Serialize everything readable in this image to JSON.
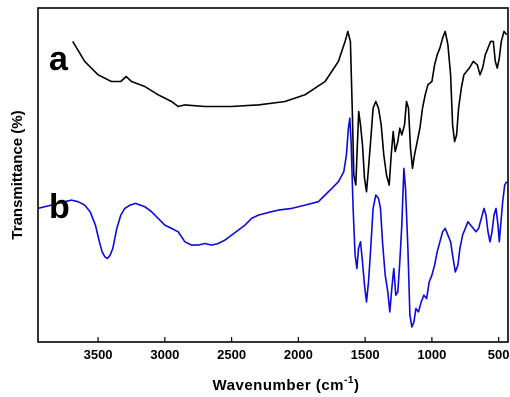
{
  "chart_data": {
    "type": "line",
    "title": "",
    "xlabel_main": "Wavenumber (cm",
    "xlabel_sup": "-1",
    "xlabel_close": ")",
    "ylabel": "Transmittance (%)",
    "x_reversed": true,
    "xlim": [
      3950,
      430
    ],
    "x_ticks": [
      3500,
      3000,
      2500,
      2000,
      1500,
      1000,
      500
    ],
    "x_tick_labels": [
      "3500",
      "3000",
      "2500",
      "2000",
      "1500",
      "1000",
      "500"
    ],
    "y_ticks_shown": false,
    "ylim": [
      0,
      100
    ],
    "grid": false,
    "legend": "none",
    "series": [
      {
        "name": "a",
        "color": "#000000",
        "points": [
          [
            3690,
            90
          ],
          [
            3600,
            84
          ],
          [
            3500,
            80
          ],
          [
            3400,
            78
          ],
          [
            3330,
            78
          ],
          [
            3290,
            79.5
          ],
          [
            3250,
            78
          ],
          [
            3150,
            76.5
          ],
          [
            3050,
            74
          ],
          [
            2950,
            72
          ],
          [
            2900,
            70.5
          ],
          [
            2850,
            71
          ],
          [
            2700,
            70.5
          ],
          [
            2500,
            70.5
          ],
          [
            2300,
            71
          ],
          [
            2100,
            72
          ],
          [
            1950,
            74
          ],
          [
            1800,
            78
          ],
          [
            1700,
            84
          ],
          [
            1650,
            90
          ],
          [
            1630,
            93
          ],
          [
            1610,
            90
          ],
          [
            1595,
            68
          ],
          [
            1585,
            50
          ],
          [
            1570,
            47
          ],
          [
            1560,
            57
          ],
          [
            1548,
            69
          ],
          [
            1535,
            65
          ],
          [
            1520,
            59
          ],
          [
            1505,
            49
          ],
          [
            1490,
            45
          ],
          [
            1475,
            52
          ],
          [
            1455,
            62
          ],
          [
            1440,
            70
          ],
          [
            1420,
            72
          ],
          [
            1400,
            70
          ],
          [
            1380,
            65
          ],
          [
            1360,
            56
          ],
          [
            1340,
            50
          ],
          [
            1320,
            47
          ],
          [
            1305,
            56
          ],
          [
            1290,
            63
          ],
          [
            1275,
            57
          ],
          [
            1255,
            60
          ],
          [
            1240,
            64
          ],
          [
            1225,
            62
          ],
          [
            1205,
            65
          ],
          [
            1190,
            72
          ],
          [
            1175,
            70
          ],
          [
            1160,
            58
          ],
          [
            1145,
            52
          ],
          [
            1130,
            56
          ],
          [
            1110,
            60
          ],
          [
            1090,
            64
          ],
          [
            1070,
            70
          ],
          [
            1050,
            74
          ],
          [
            1030,
            77
          ],
          [
            1000,
            78
          ],
          [
            980,
            83
          ],
          [
            960,
            86
          ],
          [
            940,
            88
          ],
          [
            920,
            91
          ],
          [
            900,
            93
          ],
          [
            880,
            89
          ],
          [
            860,
            80
          ],
          [
            845,
            65
          ],
          [
            830,
            60
          ],
          [
            815,
            62
          ],
          [
            800,
            70
          ],
          [
            780,
            76
          ],
          [
            760,
            80
          ],
          [
            720,
            82
          ],
          [
            690,
            84
          ],
          [
            660,
            83
          ],
          [
            640,
            80
          ],
          [
            620,
            82
          ],
          [
            600,
            86
          ],
          [
            580,
            88
          ],
          [
            560,
            90
          ],
          [
            540,
            90
          ],
          [
            525,
            84
          ],
          [
            510,
            82
          ],
          [
            495,
            85
          ],
          [
            480,
            90
          ],
          [
            460,
            93
          ],
          [
            440,
            92
          ]
        ]
      },
      {
        "name": "b",
        "color": "#0a0adc",
        "points": [
          [
            3950,
            40
          ],
          [
            3850,
            41
          ],
          [
            3750,
            42
          ],
          [
            3700,
            42.5
          ],
          [
            3650,
            42
          ],
          [
            3600,
            41
          ],
          [
            3560,
            39
          ],
          [
            3520,
            35
          ],
          [
            3490,
            30
          ],
          [
            3470,
            27
          ],
          [
            3450,
            25.5
          ],
          [
            3430,
            25
          ],
          [
            3410,
            26
          ],
          [
            3390,
            28
          ],
          [
            3360,
            34
          ],
          [
            3330,
            38
          ],
          [
            3300,
            40
          ],
          [
            3260,
            41
          ],
          [
            3220,
            41.5
          ],
          [
            3150,
            40.5
          ],
          [
            3100,
            39
          ],
          [
            3050,
            37
          ],
          [
            3000,
            35
          ],
          [
            2950,
            34
          ],
          [
            2900,
            33
          ],
          [
            2850,
            30
          ],
          [
            2800,
            29
          ],
          [
            2750,
            29
          ],
          [
            2700,
            29.5
          ],
          [
            2650,
            29
          ],
          [
            2600,
            29.5
          ],
          [
            2550,
            30.5
          ],
          [
            2500,
            32
          ],
          [
            2450,
            33.5
          ],
          [
            2400,
            35
          ],
          [
            2350,
            37
          ],
          [
            2300,
            38
          ],
          [
            2250,
            38.5
          ],
          [
            2200,
            39
          ],
          [
            2150,
            39.5
          ],
          [
            2050,
            40
          ],
          [
            1950,
            41
          ],
          [
            1850,
            42
          ],
          [
            1800,
            44
          ],
          [
            1750,
            46
          ],
          [
            1700,
            48
          ],
          [
            1660,
            51
          ],
          [
            1640,
            56
          ],
          [
            1625,
            64
          ],
          [
            1615,
            67
          ],
          [
            1605,
            60
          ],
          [
            1590,
            40
          ],
          [
            1575,
            26
          ],
          [
            1562,
            22
          ],
          [
            1550,
            28
          ],
          [
            1535,
            30
          ],
          [
            1520,
            24
          ],
          [
            1505,
            17
          ],
          [
            1490,
            12
          ],
          [
            1475,
            18
          ],
          [
            1460,
            27
          ],
          [
            1440,
            40
          ],
          [
            1420,
            44
          ],
          [
            1400,
            43
          ],
          [
            1385,
            40
          ],
          [
            1370,
            30
          ],
          [
            1350,
            20
          ],
          [
            1330,
            15
          ],
          [
            1315,
            9
          ],
          [
            1300,
            16
          ],
          [
            1285,
            22
          ],
          [
            1270,
            14
          ],
          [
            1255,
            15
          ],
          [
            1240,
            24
          ],
          [
            1225,
            35
          ],
          [
            1210,
            52
          ],
          [
            1198,
            46
          ],
          [
            1180,
            28
          ],
          [
            1165,
            8
          ],
          [
            1150,
            4.5
          ],
          [
            1135,
            6
          ],
          [
            1120,
            10
          ],
          [
            1100,
            9
          ],
          [
            1080,
            12
          ],
          [
            1060,
            14
          ],
          [
            1040,
            13
          ],
          [
            1020,
            18
          ],
          [
            1000,
            20
          ],
          [
            980,
            23
          ],
          [
            960,
            27
          ],
          [
            940,
            30
          ],
          [
            920,
            33
          ],
          [
            900,
            34
          ],
          [
            880,
            32
          ],
          [
            860,
            30
          ],
          [
            845,
            26
          ],
          [
            825,
            21
          ],
          [
            805,
            23
          ],
          [
            790,
            28
          ],
          [
            770,
            32
          ],
          [
            750,
            34
          ],
          [
            730,
            36
          ],
          [
            710,
            35
          ],
          [
            690,
            34
          ],
          [
            670,
            33
          ],
          [
            650,
            34
          ],
          [
            630,
            37
          ],
          [
            610,
            40
          ],
          [
            595,
            38
          ],
          [
            580,
            33
          ],
          [
            565,
            30
          ],
          [
            550,
            33
          ],
          [
            535,
            38
          ],
          [
            520,
            40
          ],
          [
            505,
            35
          ],
          [
            495,
            30
          ],
          [
            485,
            35
          ],
          [
            470,
            42
          ],
          [
            455,
            47
          ],
          [
            440,
            48
          ]
        ]
      }
    ]
  },
  "panel_labels": [
    "a",
    "b"
  ]
}
